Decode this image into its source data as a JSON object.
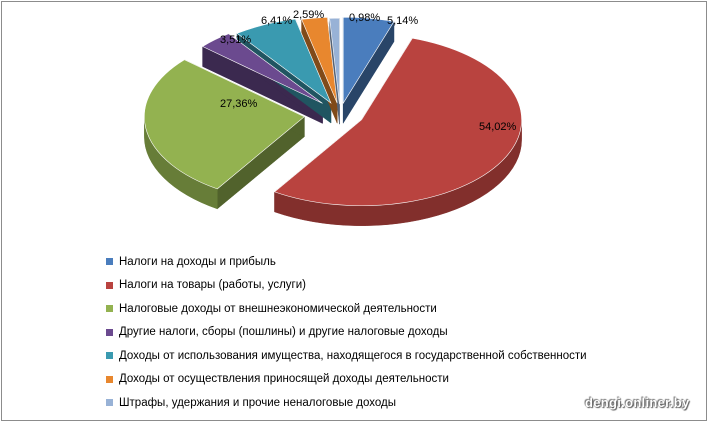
{
  "chart_data": {
    "type": "pie",
    "title": "",
    "legend_position": "bottom",
    "slices": [
      {
        "label": "Налоги на доходы и прибыль",
        "value": 5.14,
        "value_label": "5,14%",
        "color": "#4a7dbd"
      },
      {
        "label": "Налоги на товары (работы, услуги)",
        "value": 54.02,
        "value_label": "54,02%",
        "color": "#b9433f"
      },
      {
        "label": "Налоговые доходы от внешнеэкономической  деятельности",
        "value": 27.36,
        "value_label": "27,36%",
        "color": "#93b250"
      },
      {
        "label": "Другие налоги, сборы (пошлины) и другие налоговые доходы",
        "value": 3.51,
        "value_label": "3,51%",
        "color": "#6b4a8f"
      },
      {
        "label": "Доходы от использования имущества, находящегося в государственной собственности",
        "value": 6.41,
        "value_label": "6,41%",
        "color": "#3a9ab0"
      },
      {
        "label": "Доходы от осуществления  приносящей доходы деятельности",
        "value": 2.59,
        "value_label": "2,59%",
        "color": "#e8872e"
      },
      {
        "label": "Штрафы, удержания и прочие неналоговые доходы",
        "value": 0.98,
        "value_label": "0,98%",
        "color": "#98b2d6"
      }
    ]
  },
  "watermark": "dengi.onliner.by"
}
